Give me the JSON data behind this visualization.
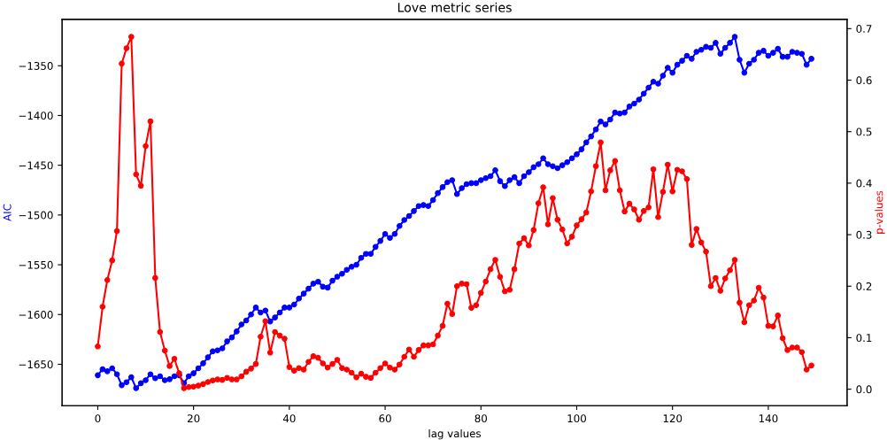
{
  "chart_data": {
    "type": "line",
    "title": "Love metric series",
    "xlabel": "lag values",
    "ylabel": "AIC",
    "y2label": "p-values",
    "x": [
      0,
      1,
      2,
      3,
      4,
      5,
      6,
      7,
      8,
      9,
      10,
      11,
      12,
      13,
      14,
      15,
      16,
      17,
      18,
      19,
      20,
      21,
      22,
      23,
      24,
      25,
      26,
      27,
      28,
      29,
      30,
      31,
      32,
      33,
      34,
      35,
      36,
      37,
      38,
      39,
      40,
      41,
      42,
      43,
      44,
      45,
      46,
      47,
      48,
      49,
      50,
      51,
      52,
      53,
      54,
      55,
      56,
      57,
      58,
      59,
      60,
      61,
      62,
      63,
      64,
      65,
      66,
      67,
      68,
      69,
      70,
      71,
      72,
      73,
      74,
      75,
      76,
      77,
      78,
      79,
      80,
      81,
      82,
      83,
      84,
      85,
      86,
      87,
      88,
      89,
      90,
      91,
      92,
      93,
      94,
      95,
      96,
      97,
      98,
      99,
      100,
      101,
      102,
      103,
      104,
      105,
      106,
      107,
      108,
      109,
      110,
      111,
      112,
      113,
      114,
      115,
      116,
      117,
      118,
      119,
      120,
      121,
      122,
      123,
      124,
      125,
      126,
      127,
      128,
      129,
      130,
      131,
      132,
      133,
      134,
      135,
      136,
      137,
      138,
      139,
      140,
      141,
      142,
      143,
      144,
      145,
      146,
      147,
      148,
      149
    ],
    "series": [
      {
        "color": "#0000ff",
        "axis": "y",
        "values": [
          -1661,
          -1655,
          -1657,
          -1654,
          -1660,
          -1671,
          -1668,
          -1663,
          -1674,
          -1669,
          -1666,
          -1660,
          -1664,
          -1662,
          -1666,
          -1665,
          -1662,
          -1661,
          -1669,
          -1662,
          -1659,
          -1654,
          -1649,
          -1643,
          -1637,
          -1636,
          -1634,
          -1627,
          -1623,
          -1617,
          -1610,
          -1606,
          -1600,
          -1593,
          -1598,
          -1596,
          -1607,
          -1603,
          -1598,
          -1593,
          -1593,
          -1590,
          -1584,
          -1579,
          -1574,
          -1569,
          -1567,
          -1572,
          -1573,
          -1566,
          -1562,
          -1559,
          -1555,
          -1552,
          -1550,
          -1543,
          -1539,
          -1539,
          -1532,
          -1526,
          -1519,
          -1523,
          -1519,
          -1511,
          -1505,
          -1501,
          -1496,
          -1491,
          -1490,
          -1491,
          -1485,
          -1478,
          -1472,
          -1467,
          -1465,
          -1479,
          -1473,
          -1469,
          -1468,
          -1468,
          -1465,
          -1463,
          -1461,
          -1455,
          -1466,
          -1471,
          -1465,
          -1462,
          -1468,
          -1461,
          -1457,
          -1452,
          -1449,
          -1443,
          -1449,
          -1451,
          -1453,
          -1450,
          -1447,
          -1443,
          -1439,
          -1434,
          -1427,
          -1421,
          -1414,
          -1406,
          -1409,
          -1404,
          -1397,
          -1398,
          -1397,
          -1391,
          -1388,
          -1384,
          -1378,
          -1372,
          -1366,
          -1368,
          -1360,
          -1352,
          -1357,
          -1349,
          -1345,
          -1340,
          -1343,
          -1336,
          -1334,
          -1331,
          -1332,
          -1327,
          -1338,
          -1332,
          -1327,
          -1321,
          -1344,
          -1357,
          -1348,
          -1344,
          -1337,
          -1335,
          -1340,
          -1337,
          -1333,
          -1341,
          -1341,
          -1336,
          -1337,
          -1338,
          -1349,
          -1343
        ]
      },
      {
        "color": "#ff0000",
        "axis": "y2",
        "values": [
          0.083,
          0.16,
          0.212,
          0.25,
          0.307,
          0.632,
          0.662,
          0.684,
          0.417,
          0.395,
          0.472,
          0.52,
          0.216,
          0.111,
          0.075,
          0.045,
          0.059,
          0.031,
          0.002,
          0.004,
          0.005,
          0.007,
          0.01,
          0.014,
          0.017,
          0.019,
          0.018,
          0.022,
          0.019,
          0.019,
          0.025,
          0.034,
          0.04,
          0.049,
          0.102,
          0.132,
          0.071,
          0.111,
          0.104,
          0.098,
          0.043,
          0.036,
          0.041,
          0.038,
          0.053,
          0.064,
          0.061,
          0.05,
          0.042,
          0.049,
          0.057,
          0.041,
          0.038,
          0.032,
          0.023,
          0.03,
          0.024,
          0.022,
          0.032,
          0.041,
          0.05,
          0.042,
          0.038,
          0.048,
          0.063,
          0.077,
          0.063,
          0.076,
          0.085,
          0.085,
          0.087,
          0.104,
          0.123,
          0.166,
          0.146,
          0.2,
          0.205,
          0.204,
          0.158,
          0.163,
          0.187,
          0.209,
          0.233,
          0.251,
          0.218,
          0.19,
          0.193,
          0.233,
          0.283,
          0.293,
          0.279,
          0.309,
          0.361,
          0.392,
          0.32,
          0.371,
          0.329,
          0.31,
          0.283,
          0.296,
          0.318,
          0.33,
          0.343,
          0.384,
          0.433,
          0.479,
          0.386,
          0.425,
          0.443,
          0.386,
          0.345,
          0.36,
          0.349,
          0.329,
          0.346,
          0.353,
          0.427,
          0.334,
          0.383,
          0.436,
          0.384,
          0.426,
          0.423,
          0.408,
          0.28,
          0.311,
          0.285,
          0.267,
          0.2,
          0.216,
          0.191,
          0.215,
          0.231,
          0.251,
          0.168,
          0.13,
          0.163,
          0.172,
          0.197,
          0.178,
          0.123,
          0.122,
          0.143,
          0.099,
          0.076,
          0.081,
          0.081,
          0.072,
          0.038,
          0.046
        ]
      }
    ],
    "xlim": [
      -7.45,
      156.45
    ],
    "xticks": [
      0,
      20,
      40,
      60,
      80,
      100,
      120,
      140
    ],
    "ylim": [
      -1691.6,
      -1303.4
    ],
    "yticks": [
      {
        "value": -1650,
        "label": "−1650"
      },
      {
        "value": -1600,
        "label": "−1600"
      },
      {
        "value": -1550,
        "label": "−1550"
      },
      {
        "value": -1500,
        "label": "−1500"
      },
      {
        "value": -1450,
        "label": "−1450"
      },
      {
        "value": -1400,
        "label": "−1400"
      },
      {
        "value": -1350,
        "label": "−1350"
      }
    ],
    "y2lim": [
      -0.032,
      0.718
    ],
    "y2ticks": [
      {
        "value": 0,
        "label": "0.0"
      },
      0.1,
      0.2,
      0.3,
      0.4,
      0.5,
      0.6,
      0.7
    ],
    "marker": "circle",
    "line_style": "solid",
    "grid": false
  }
}
